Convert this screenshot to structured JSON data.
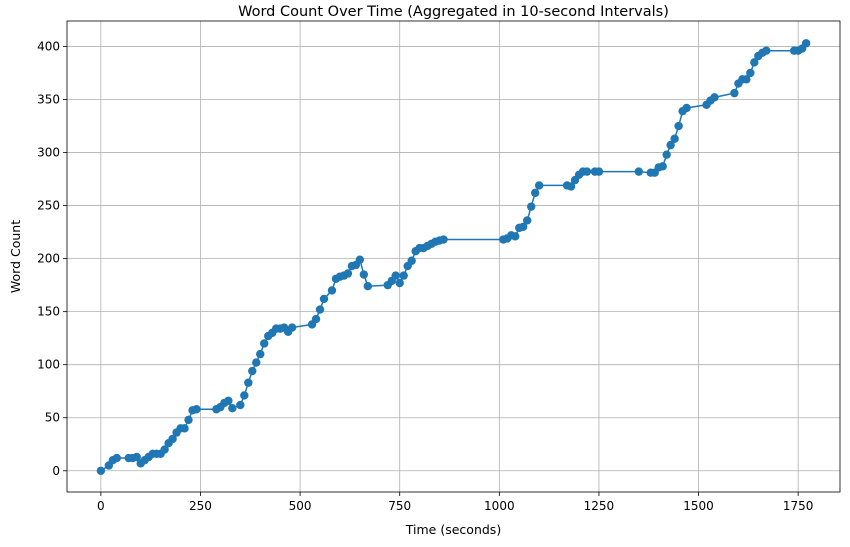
{
  "chart_data": {
    "type": "line",
    "title": "Word Count Over Time (Aggregated in 10-second Intervals)",
    "xlabel": "Time (seconds)",
    "ylabel": "Word Count",
    "xlim": [
      -85,
      1855
    ],
    "ylim": [
      -20,
      424
    ],
    "xticks": [
      0,
      250,
      500,
      750,
      1000,
      1250,
      1500,
      1750
    ],
    "yticks": [
      0,
      50,
      100,
      150,
      200,
      250,
      300,
      350,
      400
    ],
    "grid": true,
    "marker": "circle",
    "color": "#1f77b4",
    "series": [
      {
        "name": "Word Count",
        "x": [
          0,
          20,
          30,
          40,
          70,
          80,
          90,
          100,
          110,
          120,
          130,
          140,
          150,
          160,
          170,
          180,
          190,
          200,
          210,
          220,
          230,
          240,
          290,
          300,
          310,
          320,
          330,
          350,
          360,
          370,
          380,
          390,
          400,
          410,
          420,
          430,
          440,
          450,
          460,
          470,
          480,
          530,
          540,
          550,
          560,
          580,
          590,
          600,
          610,
          620,
          630,
          640,
          650,
          660,
          670,
          720,
          730,
          740,
          750,
          760,
          770,
          780,
          790,
          800,
          810,
          820,
          830,
          840,
          850,
          860,
          1010,
          1020,
          1030,
          1040,
          1050,
          1060,
          1070,
          1080,
          1090,
          1100,
          1170,
          1180,
          1190,
          1200,
          1210,
          1220,
          1240,
          1250,
          1350,
          1380,
          1390,
          1400,
          1410,
          1420,
          1430,
          1440,
          1450,
          1460,
          1470,
          1520,
          1530,
          1540,
          1590,
          1600,
          1610,
          1620,
          1630,
          1640,
          1650,
          1660,
          1670,
          1740,
          1750,
          1760,
          1770
        ],
        "values": [
          0,
          5,
          10,
          12,
          12,
          12,
          13,
          7,
          10,
          13,
          16,
          16,
          16,
          20,
          26,
          30,
          36,
          40,
          40,
          48,
          57,
          58,
          58,
          60,
          64,
          66,
          59,
          62,
          71,
          83,
          94,
          102,
          110,
          120,
          127,
          130,
          134,
          134,
          135,
          131,
          135,
          138,
          143,
          152,
          162,
          170,
          181,
          183,
          184,
          186,
          193,
          194,
          199,
          185,
          174,
          175,
          179,
          184,
          177,
          184,
          193,
          198,
          207,
          210,
          210,
          212,
          214,
          216,
          217,
          218,
          218,
          219,
          222,
          221,
          229,
          230,
          236,
          249,
          262,
          269,
          269,
          268,
          274,
          279,
          282,
          282,
          282,
          282,
          282,
          281,
          281,
          286,
          287,
          298,
          307,
          313,
          325,
          339,
          342,
          345,
          349,
          352,
          356,
          365,
          369,
          369,
          375,
          385,
          391,
          394,
          396,
          396,
          396,
          398,
          403
        ]
      }
    ]
  }
}
